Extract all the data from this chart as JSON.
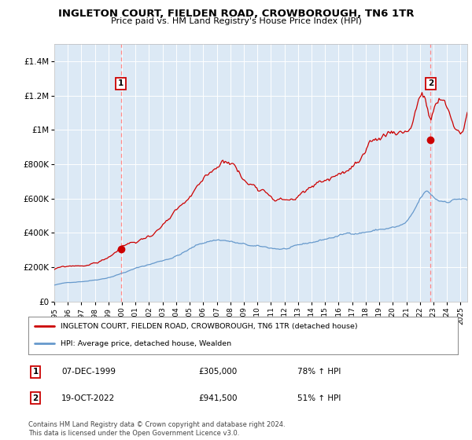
{
  "title": "INGLETON COURT, FIELDEN ROAD, CROWBOROUGH, TN6 1TR",
  "subtitle": "Price paid vs. HM Land Registry's House Price Index (HPI)",
  "plot_bg_color": "#dce9f5",
  "red_line_color": "#cc0000",
  "blue_line_color": "#6699cc",
  "vline_color": "#ff8888",
  "ylim": [
    0,
    1500000
  ],
  "xlim_start": 1995.0,
  "xlim_end": 2025.5,
  "sale1_year": 1999.92,
  "sale1_price": 305000,
  "sale2_year": 2022.79,
  "sale2_price": 941500,
  "sale1_date": "07-DEC-1999",
  "sale1_hpi": "78% ↑ HPI",
  "sale2_date": "19-OCT-2022",
  "sale2_hpi": "51% ↑ HPI",
  "legend_line1": "INGLETON COURT, FIELDEN ROAD, CROWBOROUGH, TN6 1TR (detached house)",
  "legend_line2": "HPI: Average price, detached house, Wealden",
  "footer": "Contains HM Land Registry data © Crown copyright and database right 2024.\nThis data is licensed under the Open Government Licence v3.0.",
  "yticks": [
    0,
    200000,
    400000,
    600000,
    800000,
    1000000,
    1200000,
    1400000
  ],
  "ytick_labels": [
    "£0",
    "£200K",
    "£400K",
    "£600K",
    "£800K",
    "£1M",
    "£1.2M",
    "£1.4M"
  ],
  "xticks": [
    1995,
    1996,
    1997,
    1998,
    1999,
    2000,
    2001,
    2002,
    2003,
    2004,
    2005,
    2006,
    2007,
    2008,
    2009,
    2010,
    2011,
    2012,
    2013,
    2014,
    2015,
    2016,
    2017,
    2018,
    2019,
    2020,
    2021,
    2022,
    2023,
    2024,
    2025
  ]
}
